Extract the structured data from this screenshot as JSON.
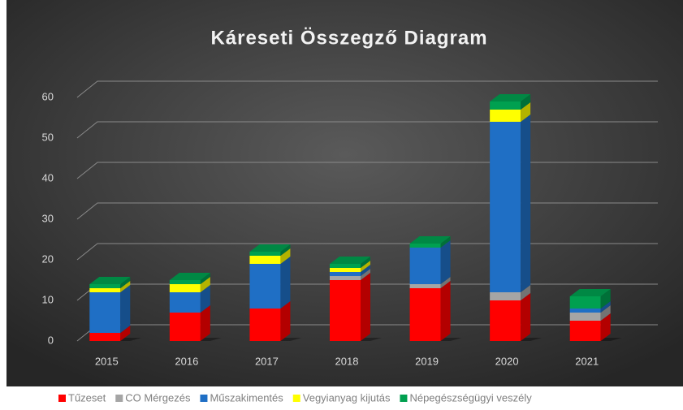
{
  "chart_data": {
    "type": "bar3d_stacked",
    "title": "Káreseti Összegző Diagram",
    "categories": [
      "2015",
      "2016",
      "2017",
      "2018",
      "2019",
      "2020",
      "2021"
    ],
    "series": [
      {
        "name": "Tűzeset",
        "color": "#ff0000",
        "values": [
          2,
          7,
          8,
          15,
          13,
          10,
          5
        ]
      },
      {
        "name": "CO Mérgezés",
        "color": "#a5a5a5",
        "values": [
          0,
          0,
          0,
          1,
          1,
          2,
          2
        ]
      },
      {
        "name": "Műszakimentés",
        "color": "#1f6fc5",
        "values": [
          10,
          5,
          11,
          1,
          9,
          42,
          1
        ]
      },
      {
        "name": "Vegyianyag kijutás",
        "color": "#ffff00",
        "values": [
          1,
          2,
          2,
          1,
          0,
          3,
          0
        ]
      },
      {
        "name": "Népegészségügyi veszély",
        "color": "#00a050",
        "values": [
          1,
          1,
          1,
          1,
          1,
          2,
          3
        ]
      }
    ],
    "ylim": [
      0,
      60
    ],
    "yticks": [
      0,
      10,
      20,
      30,
      40,
      50,
      60
    ],
    "grid": true,
    "legend": "bottom"
  }
}
